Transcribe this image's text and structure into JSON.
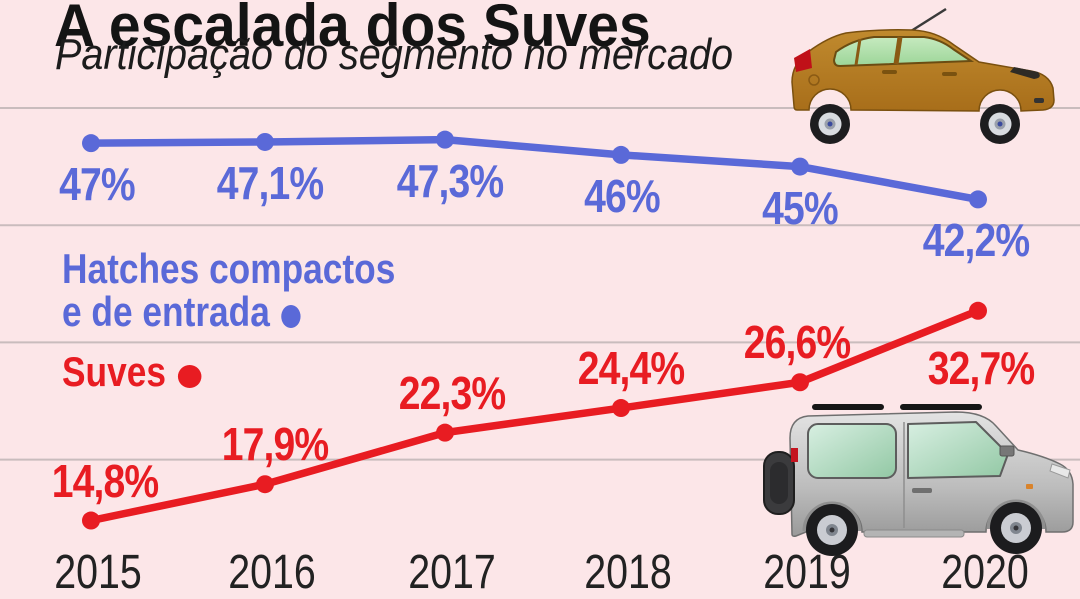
{
  "colors": {
    "background": "#fce6e8",
    "blue": "#5a69d8",
    "red": "#e81c22",
    "gridline": "#c9bcbd",
    "text": "#141414"
  },
  "legend": {
    "hatches_label_line1": "Hatches compactos",
    "hatches_label_line2": "e de entrada",
    "hatches_bullet_icon": "circle-bullet",
    "suves_label": "Suves",
    "suves_bullet_icon": "circle-bullet"
  },
  "illustrations": {
    "top_right": "hatchback-car-illustration",
    "bottom_right": "suv-car-illustration"
  },
  "chart_data": {
    "type": "line",
    "title": "A escalada dos Suves",
    "subtitle": "Participação do segmento no mercado",
    "categories": [
      "2015",
      "2016",
      "2017",
      "2018",
      "2019",
      "2020"
    ],
    "series": [
      {
        "name": "Hatches compactos e de entrada",
        "color": "#5a69d8",
        "values": [
          47,
          47.1,
          47.3,
          46,
          45,
          42.2
        ],
        "labels": [
          "47%",
          "47,1%",
          "47,3%",
          "46%",
          "45%",
          "42,2%"
        ]
      },
      {
        "name": "Suves",
        "color": "#e81c22",
        "values": [
          14.8,
          17.9,
          22.3,
          24.4,
          26.6,
          32.7
        ],
        "labels": [
          "14,8%",
          "17,9%",
          "22,3%",
          "24,4%",
          "26,6%",
          "32,7%"
        ]
      }
    ],
    "xlabel": "",
    "ylabel": "",
    "ylim": [
      10,
      52
    ],
    "grid": true,
    "grid_values": [
      50,
      40,
      30,
      20
    ],
    "legend_position": "middle-left"
  }
}
